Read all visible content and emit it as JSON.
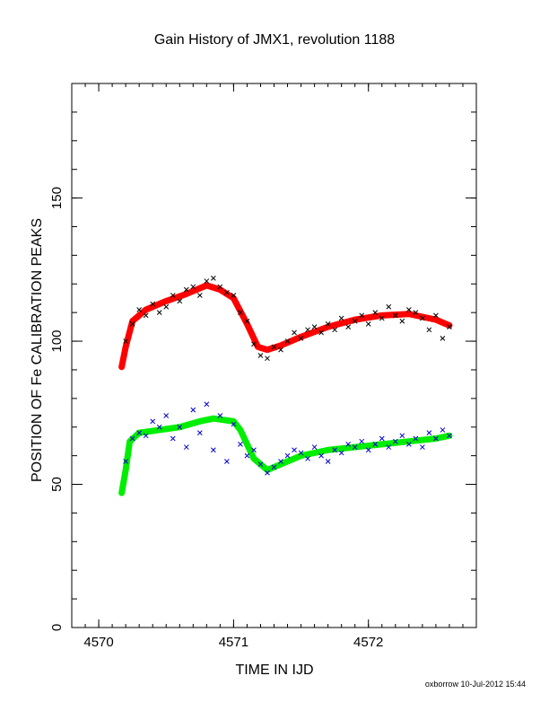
{
  "chart_data": {
    "type": "scatter",
    "title": "Gain History of JMX1, revolution 1188",
    "xlabel": "TIME IN IJD",
    "ylabel": "POSITION OF Fe CALIBRATION PEAKS",
    "xlim": [
      4569.8,
      4572.8
    ],
    "ylim": [
      0,
      190
    ],
    "x_ticks": [
      4570,
      4571,
      4572
    ],
    "x_tick_labels": [
      "4570",
      "4571",
      "4572"
    ],
    "y_ticks": [
      0,
      50,
      100,
      150
    ],
    "y_tick_labels": [
      "0",
      "50",
      "100",
      "150"
    ],
    "grid": false,
    "series": [
      {
        "role": "upper peak fit",
        "color": "#ff0000",
        "marker": "line",
        "x": [
          4570.17,
          4570.2,
          4570.25,
          4570.35,
          4570.5,
          4570.65,
          4570.8,
          4570.9,
          4571.0,
          4571.1,
          4571.18,
          4571.25,
          4571.35,
          4571.5,
          4571.7,
          4571.9,
          4572.1,
          4572.3,
          4572.5,
          4572.6
        ],
        "values": [
          91,
          98,
          107,
          111,
          114,
          116.5,
          119.5,
          118,
          115,
          106,
          98,
          97,
          98.5,
          101.5,
          105,
          107.5,
          109,
          109.5,
          107.5,
          105.5
        ]
      },
      {
        "role": "upper peak data",
        "color": "#000000",
        "marker": "x",
        "x": [
          4570.2,
          4570.25,
          4570.3,
          4570.35,
          4570.4,
          4570.45,
          4570.5,
          4570.55,
          4570.6,
          4570.65,
          4570.7,
          4570.75,
          4570.8,
          4570.85,
          4570.9,
          4570.95,
          4571.0,
          4571.05,
          4571.1,
          4571.15,
          4571.2,
          4571.25,
          4571.3,
          4571.35,
          4571.4,
          4571.45,
          4571.5,
          4571.55,
          4571.6,
          4571.65,
          4571.7,
          4571.75,
          4571.8,
          4571.85,
          4571.9,
          4571.95,
          4572.0,
          4572.05,
          4572.1,
          4572.15,
          4572.2,
          4572.25,
          4572.3,
          4572.35,
          4572.4,
          4572.45,
          4572.5,
          4572.55,
          4572.6
        ],
        "values": [
          100,
          106,
          111,
          109,
          113,
          110,
          112,
          116,
          114,
          118,
          119,
          116,
          121,
          122,
          119,
          117,
          116,
          110,
          107,
          99,
          95,
          94,
          98,
          97,
          100,
          103,
          101,
          104,
          105,
          103,
          106,
          104,
          108,
          105,
          107,
          109,
          106,
          110,
          108,
          112,
          109,
          107,
          111,
          110,
          108,
          104,
          109,
          101,
          105
        ]
      },
      {
        "role": "lower peak fit",
        "color": "#00ee00",
        "marker": "line",
        "x": [
          4570.17,
          4570.2,
          4570.23,
          4570.3,
          4570.45,
          4570.6,
          4570.75,
          4570.85,
          4571.0,
          4571.05,
          4571.15,
          4571.25,
          4571.35,
          4571.5,
          4571.7,
          4571.9,
          4572.1,
          4572.3,
          4572.5,
          4572.6
        ],
        "values": [
          47,
          55,
          65,
          68,
          69,
          70,
          72,
          73,
          72,
          69,
          59,
          55,
          57,
          60,
          62,
          63,
          64,
          65,
          66,
          67
        ]
      },
      {
        "role": "lower peak data",
        "color": "#0000cc",
        "marker": "x",
        "x": [
          4570.2,
          4570.25,
          4570.3,
          4570.35,
          4570.4,
          4570.45,
          4570.5,
          4570.55,
          4570.6,
          4570.65,
          4570.7,
          4570.75,
          4570.8,
          4570.85,
          4570.9,
          4570.95,
          4571.0,
          4571.05,
          4571.1,
          4571.15,
          4571.2,
          4571.25,
          4571.3,
          4571.35,
          4571.4,
          4571.45,
          4571.5,
          4571.55,
          4571.6,
          4571.65,
          4571.7,
          4571.75,
          4571.8,
          4571.85,
          4571.9,
          4571.95,
          4572.0,
          4572.05,
          4572.1,
          4572.15,
          4572.2,
          4572.25,
          4572.3,
          4572.35,
          4572.4,
          4572.45,
          4572.5,
          4572.55,
          4572.6
        ],
        "values": [
          58,
          66,
          68,
          67,
          72,
          70,
          74,
          66,
          70,
          63,
          76,
          68,
          78,
          62,
          74,
          58,
          71,
          64,
          60,
          62,
          57,
          54,
          56,
          58,
          60,
          62,
          61,
          59,
          63,
          60,
          58,
          62,
          61,
          64,
          63,
          65,
          62,
          64,
          66,
          63,
          65,
          67,
          64,
          66,
          63,
          68,
          66,
          69,
          67
        ]
      }
    ],
    "annotation": "oxborrow 10-Jul-2012 15:44"
  }
}
